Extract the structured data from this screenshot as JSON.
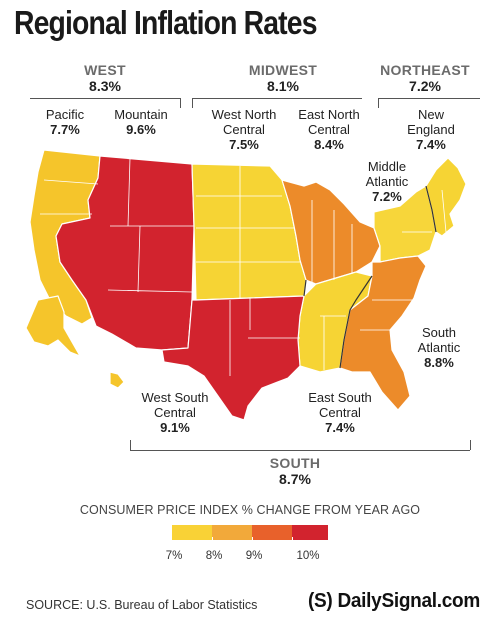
{
  "title": "Regional Inflation Rates",
  "regions": {
    "west": {
      "name": "WEST",
      "value": "8.3%"
    },
    "midwest": {
      "name": "MIDWEST",
      "value": "8.1%"
    },
    "northeast": {
      "name": "NORTHEAST",
      "value": "7.2%"
    },
    "south": {
      "name": "SOUTH",
      "value": "8.7%"
    }
  },
  "divisions": {
    "pacific": {
      "name": "Pacific",
      "value": "7.7%",
      "color": "#f5c52b"
    },
    "mountain": {
      "name": "Mountain",
      "value": "9.6%",
      "color": "#d2232e"
    },
    "west_north_central": {
      "name_line1": "West North",
      "name_line2": "Central",
      "value": "7.5%",
      "color": "#f6d434"
    },
    "east_north_central": {
      "name_line1": "East North",
      "name_line2": "Central",
      "value": "8.4%",
      "color": "#ec8b2a"
    },
    "new_england": {
      "name_line1": "New",
      "name_line2": "England",
      "value": "7.4%",
      "color": "#f6d434"
    },
    "middle_atlantic": {
      "name_line1": "Middle",
      "name_line2": "Atlantic",
      "value": "7.2%",
      "color": "#f7d63a"
    },
    "south_atlantic": {
      "name_line1": "South",
      "name_line2": "Atlantic",
      "value": "8.8%",
      "color": "#ec8b2a"
    },
    "west_south_central": {
      "name_line1": "West South",
      "name_line2": "Central",
      "value": "9.1%",
      "color": "#d2232e"
    },
    "east_south_central": {
      "name_line1": "East South",
      "name_line2": "Central",
      "value": "7.4%",
      "color": "#f6d434"
    }
  },
  "legend": {
    "title": "CONSUMER PRICE INDEX % CHANGE FROM YEAR AGO",
    "labels": [
      "7%",
      "8%",
      "9%",
      "10%"
    ],
    "colors": [
      "#f9d236",
      "#f2a93a",
      "#e8612b",
      "#d2232e"
    ]
  },
  "source": "SOURCE: U.S. Bureau of Labor Statistics",
  "brand": "(S) DailySignal.com"
}
